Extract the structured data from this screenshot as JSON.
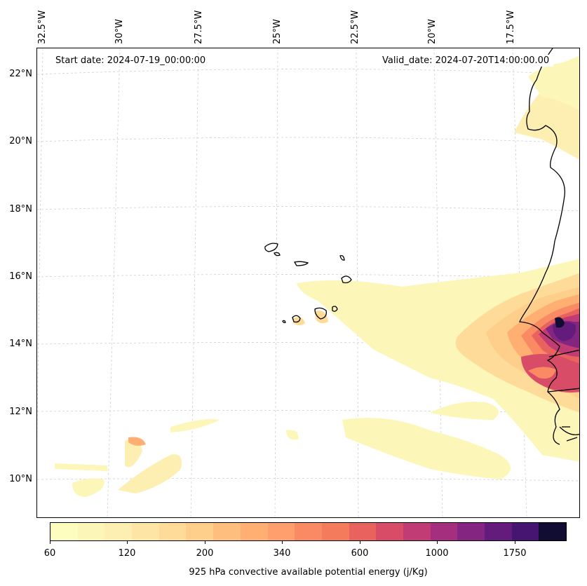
{
  "map": {
    "start_date": "Start date: 2024-07-19_00:00:00",
    "valid_date": "Valid_date: 2024-07-20T14:00:00.00",
    "lat_labels": [
      "22°N",
      "20°N",
      "18°N",
      "16°N",
      "14°N",
      "12°N",
      "10°N"
    ],
    "lon_labels": [
      "32.5°W",
      "30°W",
      "27.5°W",
      "25°W",
      "22.5°W",
      "20°W",
      "17.5°W"
    ]
  },
  "colorbar": {
    "title": "925 hPa convective available potential energy (j/Kg)",
    "tick_labels": [
      "60",
      "120",
      "200",
      "340",
      "600",
      "1000",
      "1750"
    ],
    "colors": [
      "#fcfdbf",
      "#fcf6b8",
      "#fdefb1",
      "#fde5a5",
      "#fedb99",
      "#fece8b",
      "#febf7e",
      "#feaf71",
      "#fe9f6d",
      "#fa8a64",
      "#f47b5c",
      "#e8625e",
      "#d94c68",
      "#c13b75",
      "#a32f7e",
      "#842681",
      "#631c7c",
      "#461471",
      "#110c32"
    ]
  }
}
